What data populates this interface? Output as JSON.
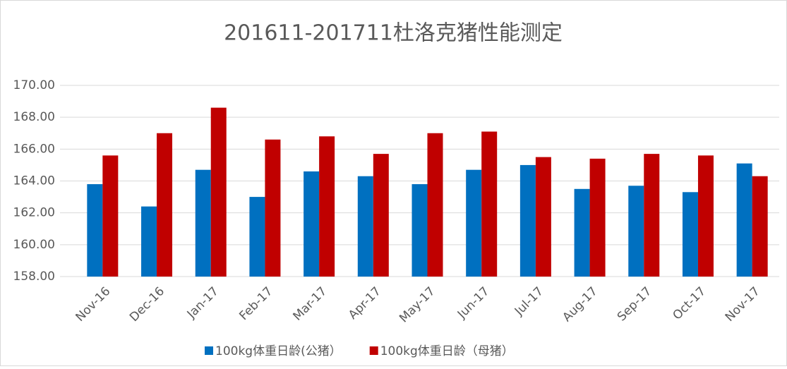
{
  "chart_data": {
    "type": "bar",
    "title": "201611-201711杜洛克猪性能测定",
    "categories": [
      "Nov-16",
      "Dec-16",
      "Jan-17",
      "Feb-17",
      "Mar-17",
      "Apr-17",
      "May-17",
      "Jun-17",
      "Jul-17",
      "Aug-17",
      "Sep-17",
      "Oct-17",
      "Nov-17"
    ],
    "series": [
      {
        "name": "100kg体重日龄(公猪）",
        "color": "#0070c0",
        "values": [
          163.8,
          162.4,
          164.7,
          163.0,
          164.6,
          164.3,
          163.8,
          164.7,
          165.0,
          163.5,
          163.7,
          163.3,
          165.1
        ]
      },
      {
        "name": "100kg体重日龄（母猪）",
        "color": "#c00000",
        "values": [
          165.6,
          167.0,
          168.6,
          166.6,
          166.8,
          165.7,
          167.0,
          167.1,
          165.5,
          165.4,
          165.7,
          165.6,
          164.3
        ]
      }
    ],
    "ylim": [
      158,
      170
    ],
    "yticks": [
      {
        "value": 158,
        "label": "158.00"
      },
      {
        "value": 160,
        "label": "160.00"
      },
      {
        "value": 162,
        "label": "162.00"
      },
      {
        "value": 164,
        "label": "164.00"
      },
      {
        "value": 166,
        "label": "166.00"
      },
      {
        "value": 168,
        "label": "168.00"
      },
      {
        "value": 170,
        "label": "170.00"
      }
    ],
    "grid": true,
    "legend": "bottom"
  }
}
